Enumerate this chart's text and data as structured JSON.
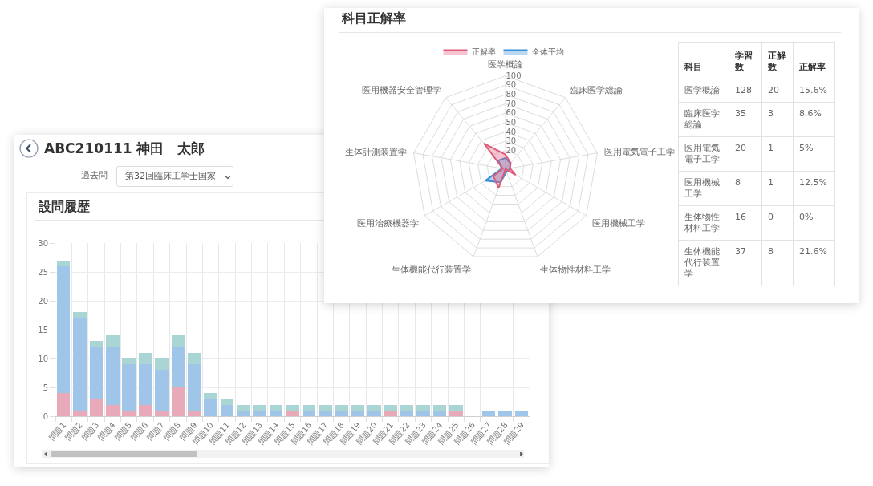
{
  "chart_data": [
    {
      "type": "radar",
      "title": "科目正解率",
      "categories": [
        "医学概論",
        "臨床医学総論",
        "医用電気電子工学",
        "医用機械工学",
        "生体物性材料工学",
        "生体機能代行装置学",
        "医用治療機器学",
        "生体計測装置学",
        "医用機器安全管理学"
      ],
      "series": [
        {
          "name": "正解率",
          "color": "#e05a7a",
          "values": [
            15.6,
            8.6,
            5,
            12.5,
            0,
            21.6,
            15,
            3,
            36
          ]
        },
        {
          "name": "全体平均",
          "color": "#3a8fd6",
          "values": [
            12,
            8,
            5,
            4,
            3,
            15,
            25,
            4,
            12
          ]
        }
      ],
      "ylim": [
        0,
        100
      ],
      "yticks": [
        20,
        30,
        40,
        50,
        60,
        70,
        80,
        90,
        100
      ],
      "grid": true,
      "legend": "top"
    },
    {
      "type": "other",
      "ylabel": "科目",
      "categories": [
        "学習数",
        "正解数",
        "正解率"
      ],
      "y_categories": [
        "医学概論",
        "臨床医学総論",
        "医用電気電子工学",
        "医用機械工学",
        "生体物性材料工学",
        "生体機能代行装置学"
      ],
      "cell_labels": [
        [
          "128",
          "20",
          "15.6%"
        ],
        [
          "35",
          "3",
          "8.6%"
        ],
        [
          "20",
          "1",
          "5%"
        ],
        [
          "8",
          "1",
          "12.5%"
        ],
        [
          "16",
          "0",
          "0%"
        ],
        [
          "37",
          "8",
          "21.6%"
        ]
      ]
    },
    {
      "type": "bar",
      "title": "設問履歴",
      "annotations": [
        "ABC210111 神田　太郎",
        "過去問",
        "第32回臨床工学士国家"
      ],
      "categories": [
        "問題1",
        "問題2",
        "問題3",
        "問題4",
        "問題5",
        "問題6",
        "問題7",
        "問題8",
        "問題9",
        "問題10",
        "問題11",
        "問題12",
        "問題13",
        "問題14",
        "問題15",
        "問題16",
        "問題17",
        "問題18",
        "問題19",
        "問題20",
        "問題21",
        "問題22",
        "問題23",
        "問題24",
        "問題25",
        "問題26",
        "問題27",
        "問題28",
        "問題29"
      ],
      "stacked": true,
      "series": [
        {
          "color": "#e8aab8",
          "values": [
            4,
            1,
            3,
            2,
            1,
            2,
            1,
            5,
            1,
            0,
            0,
            0,
            0,
            0,
            1,
            0,
            0,
            0,
            0,
            0,
            1,
            0,
            0,
            0,
            1,
            0,
            0,
            0,
            0
          ]
        },
        {
          "color": "#9fc6e8",
          "values": [
            22,
            16,
            9,
            10,
            8,
            7,
            7,
            7,
            8,
            3,
            2,
            1,
            1,
            1,
            0,
            1,
            1,
            1,
            1,
            1,
            0,
            1,
            1,
            1,
            0,
            0,
            1,
            1,
            1
          ]
        },
        {
          "color": "#a9d6d4",
          "values": [
            1,
            1,
            1,
            2,
            1,
            2,
            2,
            2,
            2,
            1,
            1,
            1,
            1,
            1,
            1,
            1,
            1,
            1,
            1,
            1,
            1,
            1,
            1,
            1,
            1,
            0,
            0,
            0,
            0
          ]
        }
      ],
      "ylim": [
        0,
        30
      ],
      "yticks": [
        0,
        5,
        10,
        15,
        20,
        25,
        30
      ],
      "grid": true
    }
  ]
}
